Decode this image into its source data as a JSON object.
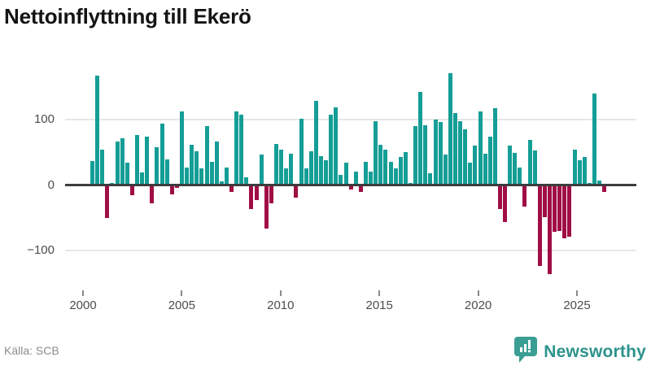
{
  "header": {
    "title": "Nettoinflyttning till Ekerö"
  },
  "footer": {
    "source_label": "Källa: SCB",
    "brand_name": "Newsworthy"
  },
  "colors": {
    "positive_bar": "#149e96",
    "negative_bar": "#a00e45",
    "zero_axis": "#3d3d3d",
    "gridline": "#e7e7e7",
    "brand_teal": "#2d938c"
  },
  "chart_data": {
    "type": "bar",
    "title": "Nettoinflyttning till Ekerö",
    "frequency": "quarterly",
    "x_start": "2000-Q1",
    "x_end": "2025-Q4",
    "xlabel": "",
    "ylabel": "",
    "ylim": [
      -150,
      185
    ],
    "grid": "horizontal",
    "legend": "none",
    "x_tick_labels": [
      "2000",
      "2005",
      "2010",
      "2015",
      "2020",
      "2025"
    ],
    "y_tick_values": [
      100,
      0,
      -100
    ],
    "y_tick_labels": [
      "100",
      "0",
      "−100"
    ],
    "values": [
      37,
      167,
      54,
      -50,
      3,
      66,
      72,
      34,
      -16,
      77,
      19,
      74,
      -28,
      58,
      94,
      39,
      -14,
      -4,
      112,
      27,
      62,
      51,
      26,
      90,
      35,
      66,
      5,
      27,
      -10,
      112,
      108,
      12,
      -37,
      -23,
      47,
      -66,
      -28,
      63,
      54,
      25,
      48,
      -19,
      101,
      25,
      52,
      129,
      44,
      38,
      107,
      119,
      16,
      34,
      -7,
      21,
      -11,
      35,
      21,
      97,
      61,
      54,
      35,
      25,
      43,
      50,
      3,
      90,
      142,
      91,
      18,
      100,
      96,
      46,
      171,
      110,
      98,
      85,
      34,
      60,
      112,
      48,
      74,
      118,
      -37,
      -57,
      60,
      49,
      27,
      -33,
      69,
      53,
      -124,
      -49,
      -136,
      -71,
      -70,
      -81,
      -79,
      54,
      38,
      43,
      3,
      140,
      7,
      -11
    ]
  }
}
